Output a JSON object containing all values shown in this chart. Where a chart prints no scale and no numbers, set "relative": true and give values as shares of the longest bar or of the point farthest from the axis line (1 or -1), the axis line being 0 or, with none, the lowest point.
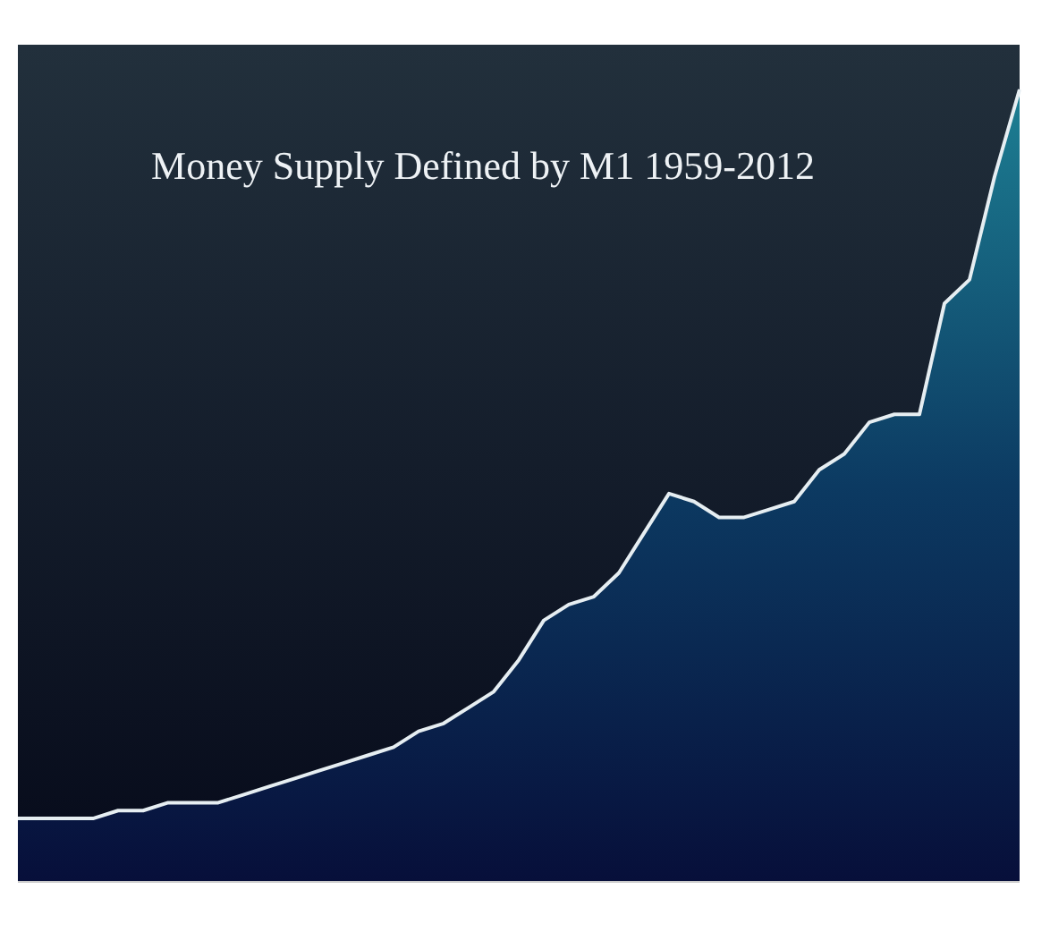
{
  "chart_data": {
    "type": "area",
    "title": "Money Supply Defined by M1 1959-2012",
    "relative": true,
    "categories": [
      null,
      null,
      null,
      null,
      null,
      null,
      null,
      null,
      null,
      null,
      null,
      null,
      null,
      null,
      null,
      null,
      null,
      null,
      null,
      null,
      null,
      null,
      null,
      null,
      null,
      null,
      null,
      null,
      null,
      null,
      null,
      null,
      null,
      null,
      null,
      null,
      null,
      null,
      null,
      null,
      null
    ],
    "series": [
      {
        "color": "#e6eef2",
        "values": [
          0.08,
          0.08,
          0.08,
          0.08,
          0.09,
          0.09,
          0.1,
          0.1,
          0.1,
          0.11,
          0.12,
          0.13,
          0.14,
          0.15,
          0.16,
          0.17,
          0.19,
          0.2,
          0.22,
          0.24,
          0.28,
          0.33,
          0.35,
          0.36,
          0.39,
          0.44,
          0.49,
          0.48,
          0.46,
          0.46,
          0.47,
          0.48,
          0.52,
          0.54,
          0.58,
          0.59,
          0.59,
          0.73,
          0.76,
          0.89,
          1
        ]
      }
    ]
  }
}
